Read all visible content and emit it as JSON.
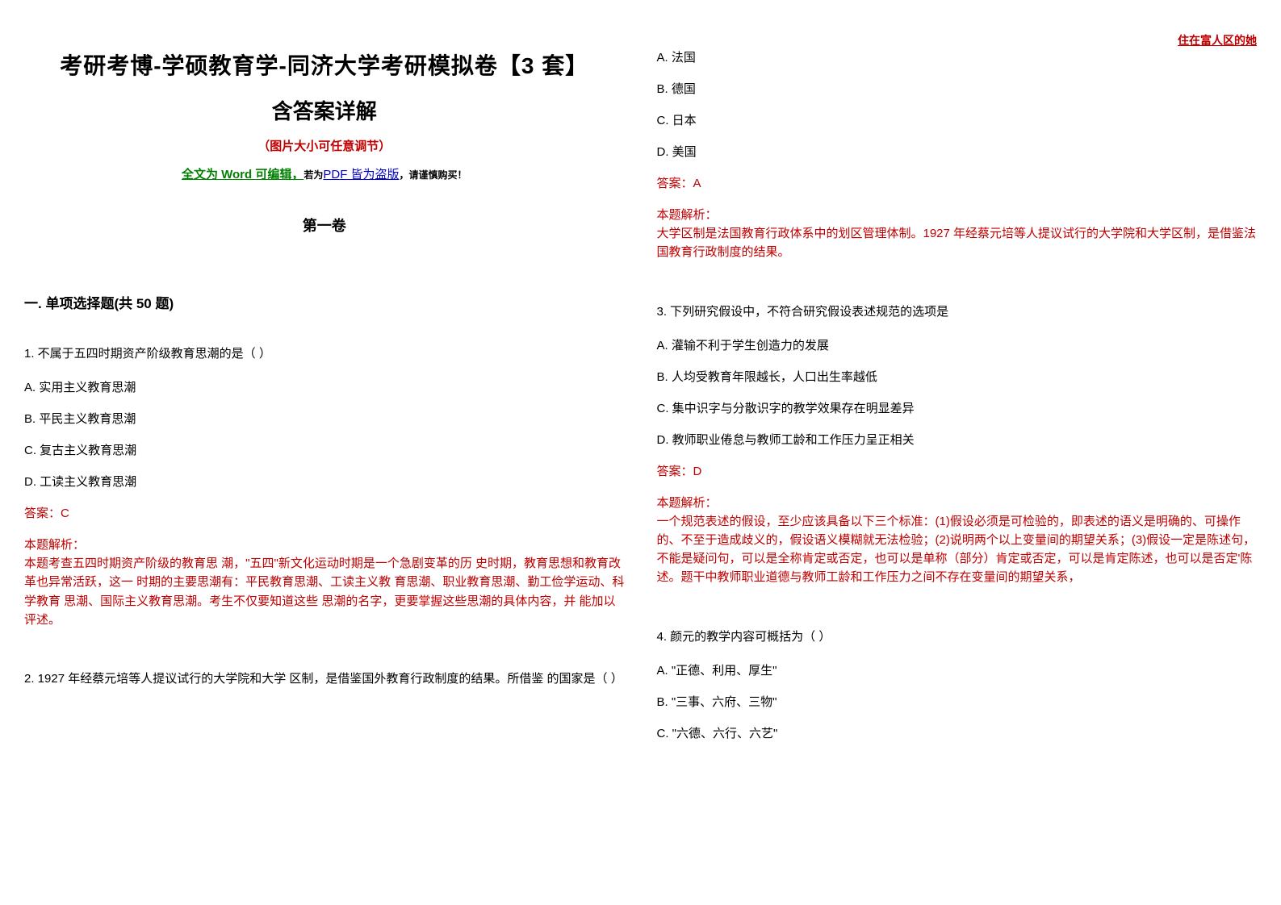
{
  "watermark": "住在富人区的她",
  "title_main": "考研考博-学硕教育学-同济大学考研模拟卷【3 套】",
  "title_sub": "含答案详解",
  "note_red": "（图片大小可任意调节）",
  "note_mixed": {
    "p1": "全文为 Word 可编辑，",
    "p2_small": "若为",
    "p3_blue": "PDF 皆为盗版",
    "p4_small_bold": "，请谨慎购买！"
  },
  "volume": "第一卷",
  "section1": "一. 单项选择题(共 50 题)",
  "q1": {
    "stem": "1. 不属于五四时期资产阶级教育思潮的是（ ）",
    "A": "A. 实用主义教育思潮",
    "B": "B. 平民主义教育思潮",
    "C": "C. 复古主义教育思潮",
    "D": "D. 工读主义教育思潮",
    "ans": "答案：C",
    "exp_label": "本题解析：",
    "exp": "本题考查五四时期资产阶级的教育思 潮，\"五四\"新文化运动时期是一个急剧变革的历 史时期，教育思想和教育改革也异常活跃，这一 时期的主要思潮有：平民教育思潮、工读主义教 育思潮、职业教育思潮、勤工俭学运动、科学教育 思潮、国际主义教育思潮。考生不仅要知道这些 思潮的名字，更要掌握这些思潮的具体内容，并 能加以评述。"
  },
  "q2": {
    "stem": "2. 1927 年经蔡元培等人提议试行的大学院和大学 区制，是借鉴国外教育行政制度的结果。所借鉴 的国家是（ ）",
    "A": "A. 法国",
    "B": "B. 德国",
    "C": "C. 日本",
    "D": "D. 美国",
    "ans": "答案：A",
    "exp_label": "本题解析：",
    "exp": "大学区制是法国教育行政体系中的划区管理体制。1927 年经蔡元培等人提议试行的大学院和大学区制，是借鉴法国教育行政制度的结果。"
  },
  "q3": {
    "stem": "3. 下列研究假设中，不符合研究假设表述规范的选项是",
    "A": "A. 灌输不利于学生创造力的发展",
    "B": "B. 人均受教育年限越长，人口出生率越低",
    "C": "C. 集中识字与分散识字的教学效果存在明显差异",
    "D": "D. 教师职业倦怠与教师工龄和工作压力呈正相关",
    "ans": "答案：D",
    "exp_label": "本题解析：",
    "exp": "一个规范表述的假设，至少应该具备以下三个标准：(1)假设必须是可检验的，即表述的语义是明确的、可操作的、不至于造成歧义的，假设语义模糊就无法检验；(2)说明两个以上变量间的期望关系；(3)假设一定是陈述句，不能是疑问句，可以是全称肯定或否定，也可以是单称（部分）肯定或否定，可以是肯定陈述，也可以是否定'陈述。题干中教师职业道德与教师工龄和工作压力之间不存在变量间的期望关系，"
  },
  "q4": {
    "stem": "4. 颜元的教学内容可概括为（ ）",
    "A": "A. \"正德、利用、厚生\"",
    "B": "B. \"三事、六府、三物\"",
    "C": "C. \"六德、六行、六艺\""
  }
}
